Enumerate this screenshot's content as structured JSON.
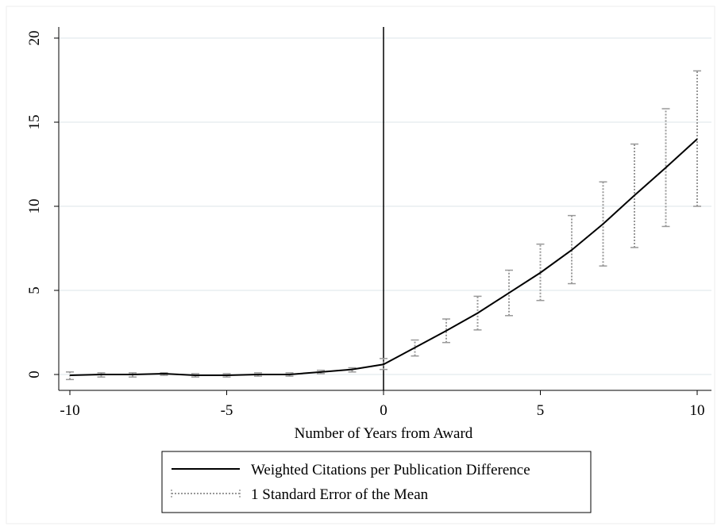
{
  "chart_data": {
    "type": "line",
    "title": "",
    "xlabel": "Number of Years from Award",
    "ylabel": "",
    "xlim": [
      -10,
      10
    ],
    "ylim": [
      0,
      20
    ],
    "x_ticks": [
      -10,
      -5,
      0,
      5,
      10
    ],
    "y_ticks": [
      0,
      5,
      10,
      15,
      20
    ],
    "x_tick_labels": [
      "-10",
      "-5",
      "0",
      "5",
      "10"
    ],
    "y_tick_labels": [
      "0",
      "5",
      "10",
      "15",
      "20"
    ],
    "grid": "horizontal",
    "reference_line_x": 0,
    "legend_position": "bottom",
    "x": [
      -10,
      -9,
      -8,
      -7,
      -6,
      -5,
      -4,
      -3,
      -2,
      -1,
      0,
      1,
      2,
      3,
      4,
      5,
      6,
      7,
      8,
      9,
      10
    ],
    "series": [
      {
        "name": "Weighted Citations per Publication Difference",
        "color": "#000000",
        "style": "solid",
        "values": [
          -0.05,
          0,
          0,
          0.05,
          -0.05,
          -0.05,
          0,
          0,
          0.15,
          0.3,
          0.6,
          1.6,
          2.6,
          3.65,
          4.85,
          6.05,
          7.4,
          8.95,
          10.65,
          12.3,
          14.0
        ]
      },
      {
        "name": "1 Standard Error of the Mean",
        "color": "#999999",
        "style": "dotted",
        "type": "errorbar",
        "lower": [
          -0.3,
          -0.15,
          -0.15,
          -0.05,
          -0.15,
          -0.15,
          -0.1,
          -0.1,
          0.05,
          0.15,
          0.3,
          1.1,
          1.9,
          2.65,
          3.5,
          4.4,
          5.4,
          6.45,
          7.55,
          8.8,
          10.0
        ],
        "upper": [
          0.15,
          0.1,
          0.1,
          0.1,
          0.05,
          0.05,
          0.1,
          0.1,
          0.25,
          0.4,
          0.95,
          2.05,
          3.3,
          4.65,
          6.2,
          7.75,
          9.45,
          11.45,
          13.7,
          15.8,
          18.05
        ]
      }
    ]
  }
}
